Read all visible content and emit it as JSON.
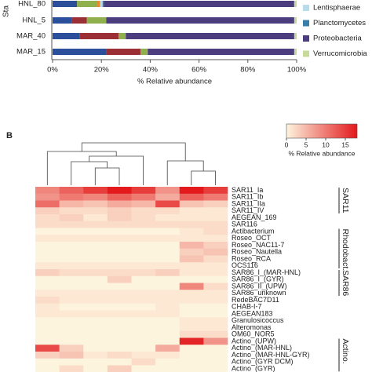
{
  "chart_data": [
    {
      "type": "bar",
      "orientation": "horizontal",
      "stacked": true,
      "ylabel": "Sta",
      "xlabel": "% Relative abundance",
      "categories": [
        "HNL_80",
        "HNL_5",
        "MAR_40",
        "MAR_15"
      ],
      "series": [
        {
          "color": "#2c4f9b",
          "values": [
            10,
            8,
            11,
            22
          ]
        },
        {
          "color": "#9b2f35",
          "values": [
            0,
            6,
            16,
            14
          ]
        },
        {
          "color": "#8fb04d",
          "values": [
            8,
            8,
            3,
            3
          ]
        },
        {
          "color": "#e98a2e",
          "values": [
            1.5,
            0,
            0,
            0
          ]
        },
        {
          "name": "Lentisphaerae",
          "color": "#b8dcea",
          "values": [
            1,
            0,
            0,
            0
          ]
        },
        {
          "name": "Planctomycetes",
          "color": "#3a7fa8",
          "values": [
            0.5,
            0,
            0,
            0
          ]
        },
        {
          "name": "Proteobacteria",
          "color": "#4c3d7e",
          "values": [
            78,
            77,
            69,
            60
          ]
        },
        {
          "name": "Verrucomicrobia",
          "color": "#c7d99b",
          "values": [
            1,
            1,
            1,
            1
          ]
        }
      ],
      "xlim": [
        0,
        100
      ],
      "xticks": [
        {
          "value": 0,
          "label": "0%"
        },
        {
          "value": 20,
          "label": "20%"
        },
        {
          "value": 40,
          "label": "40%"
        },
        {
          "value": 60,
          "label": "60%"
        },
        {
          "value": 80,
          "label": "80%"
        },
        {
          "value": 100,
          "label": "100%"
        }
      ]
    },
    {
      "type": "heatmap",
      "panel_label": "B",
      "zlabel": "% Relative abundance",
      "zlim": [
        0,
        18
      ],
      "zticks": [
        0,
        5,
        10,
        15
      ],
      "colormap": [
        "#fdf4de",
        "#e3191c"
      ],
      "rows": [
        "SAR11_Ia",
        "SAR11_Ib",
        "SAR11_IIa",
        "SAR11_IV",
        "AEGEAN_169",
        "SAR116",
        "Actibacterium",
        "Roseo_OCT",
        "Roseo_NAC11-7",
        "Roseo_Nautella",
        "Roseo_RCA",
        "OCS116",
        "SAR86_I_(MAR-HNL)",
        "SAR86_I_(GYR)",
        "SAR86_II_(UPW)",
        "SAR86_unknown",
        "RedeBAC7D11",
        "CHAB-I-7",
        "AEGEAN183",
        "Granulosicoccus",
        "Alteromonas",
        "OM60_NOR5",
        "Actino_(UPW)",
        "Actino_(MAR-HNL)",
        "Actino_(MAR-HNL-GYR)",
        "Actino_(GYR DCM)",
        "Actino_(GYR)"
      ],
      "row_groups": [
        {
          "label": "SAR11",
          "start": 0,
          "end": 3
        },
        {
          "label": "Rhodobact.",
          "start": 6,
          "end": 11
        },
        {
          "label": "SAR86",
          "start": 12,
          "end": 15
        },
        {
          "label": "Actino.",
          "start": 22,
          "end": 26
        }
      ],
      "values": [
        [
          9,
          12,
          15,
          18,
          15,
          8,
          18,
          15
        ],
        [
          8,
          10,
          9,
          12,
          10,
          6,
          12,
          10
        ],
        [
          11,
          5,
          4,
          6,
          5,
          14,
          4,
          3
        ],
        [
          3,
          2,
          2,
          3,
          2,
          2,
          1,
          1
        ],
        [
          2,
          3,
          1,
          3,
          2,
          1,
          1,
          1
        ],
        [
          2,
          2,
          2,
          2,
          2,
          2,
          2,
          2
        ],
        [
          0,
          0,
          0,
          0,
          0,
          0,
          1,
          2
        ],
        [
          1,
          1,
          1,
          1,
          1,
          1,
          1,
          1
        ],
        [
          0,
          0,
          0,
          0,
          0,
          0,
          5,
          3
        ],
        [
          0,
          0,
          0,
          0,
          0,
          0,
          3,
          4
        ],
        [
          0,
          0,
          0,
          0,
          0,
          0,
          4,
          2
        ],
        [
          1,
          1,
          1,
          1,
          1,
          1,
          1,
          1
        ],
        [
          3,
          2,
          2,
          2,
          2,
          3,
          1,
          1
        ],
        [
          0,
          0,
          0,
          3,
          0,
          0,
          0,
          0
        ],
        [
          0,
          0,
          0,
          0,
          0,
          0,
          9,
          2
        ],
        [
          1,
          1,
          1,
          1,
          1,
          1,
          1,
          1
        ],
        [
          2,
          1,
          1,
          1,
          1,
          1,
          1,
          1
        ],
        [
          1,
          0,
          0,
          0,
          0,
          1,
          0,
          0
        ],
        [
          1,
          1,
          1,
          1,
          1,
          1,
          0,
          0
        ],
        [
          0,
          0,
          0,
          0,
          0,
          0,
          1,
          1
        ],
        [
          0,
          0,
          0,
          0,
          0,
          0,
          1,
          1
        ],
        [
          0,
          0,
          0,
          0,
          0,
          0,
          2,
          2
        ],
        [
          0,
          0,
          0,
          0,
          0,
          0,
          17,
          8
        ],
        [
          14,
          3,
          0,
          0,
          0,
          6,
          0,
          0
        ],
        [
          3,
          4,
          1,
          2,
          1,
          1,
          0,
          0
        ],
        [
          0,
          0,
          0,
          0,
          2,
          0,
          0,
          0
        ],
        [
          0,
          2,
          0,
          3,
          0,
          0,
          0,
          0
        ]
      ]
    }
  ]
}
